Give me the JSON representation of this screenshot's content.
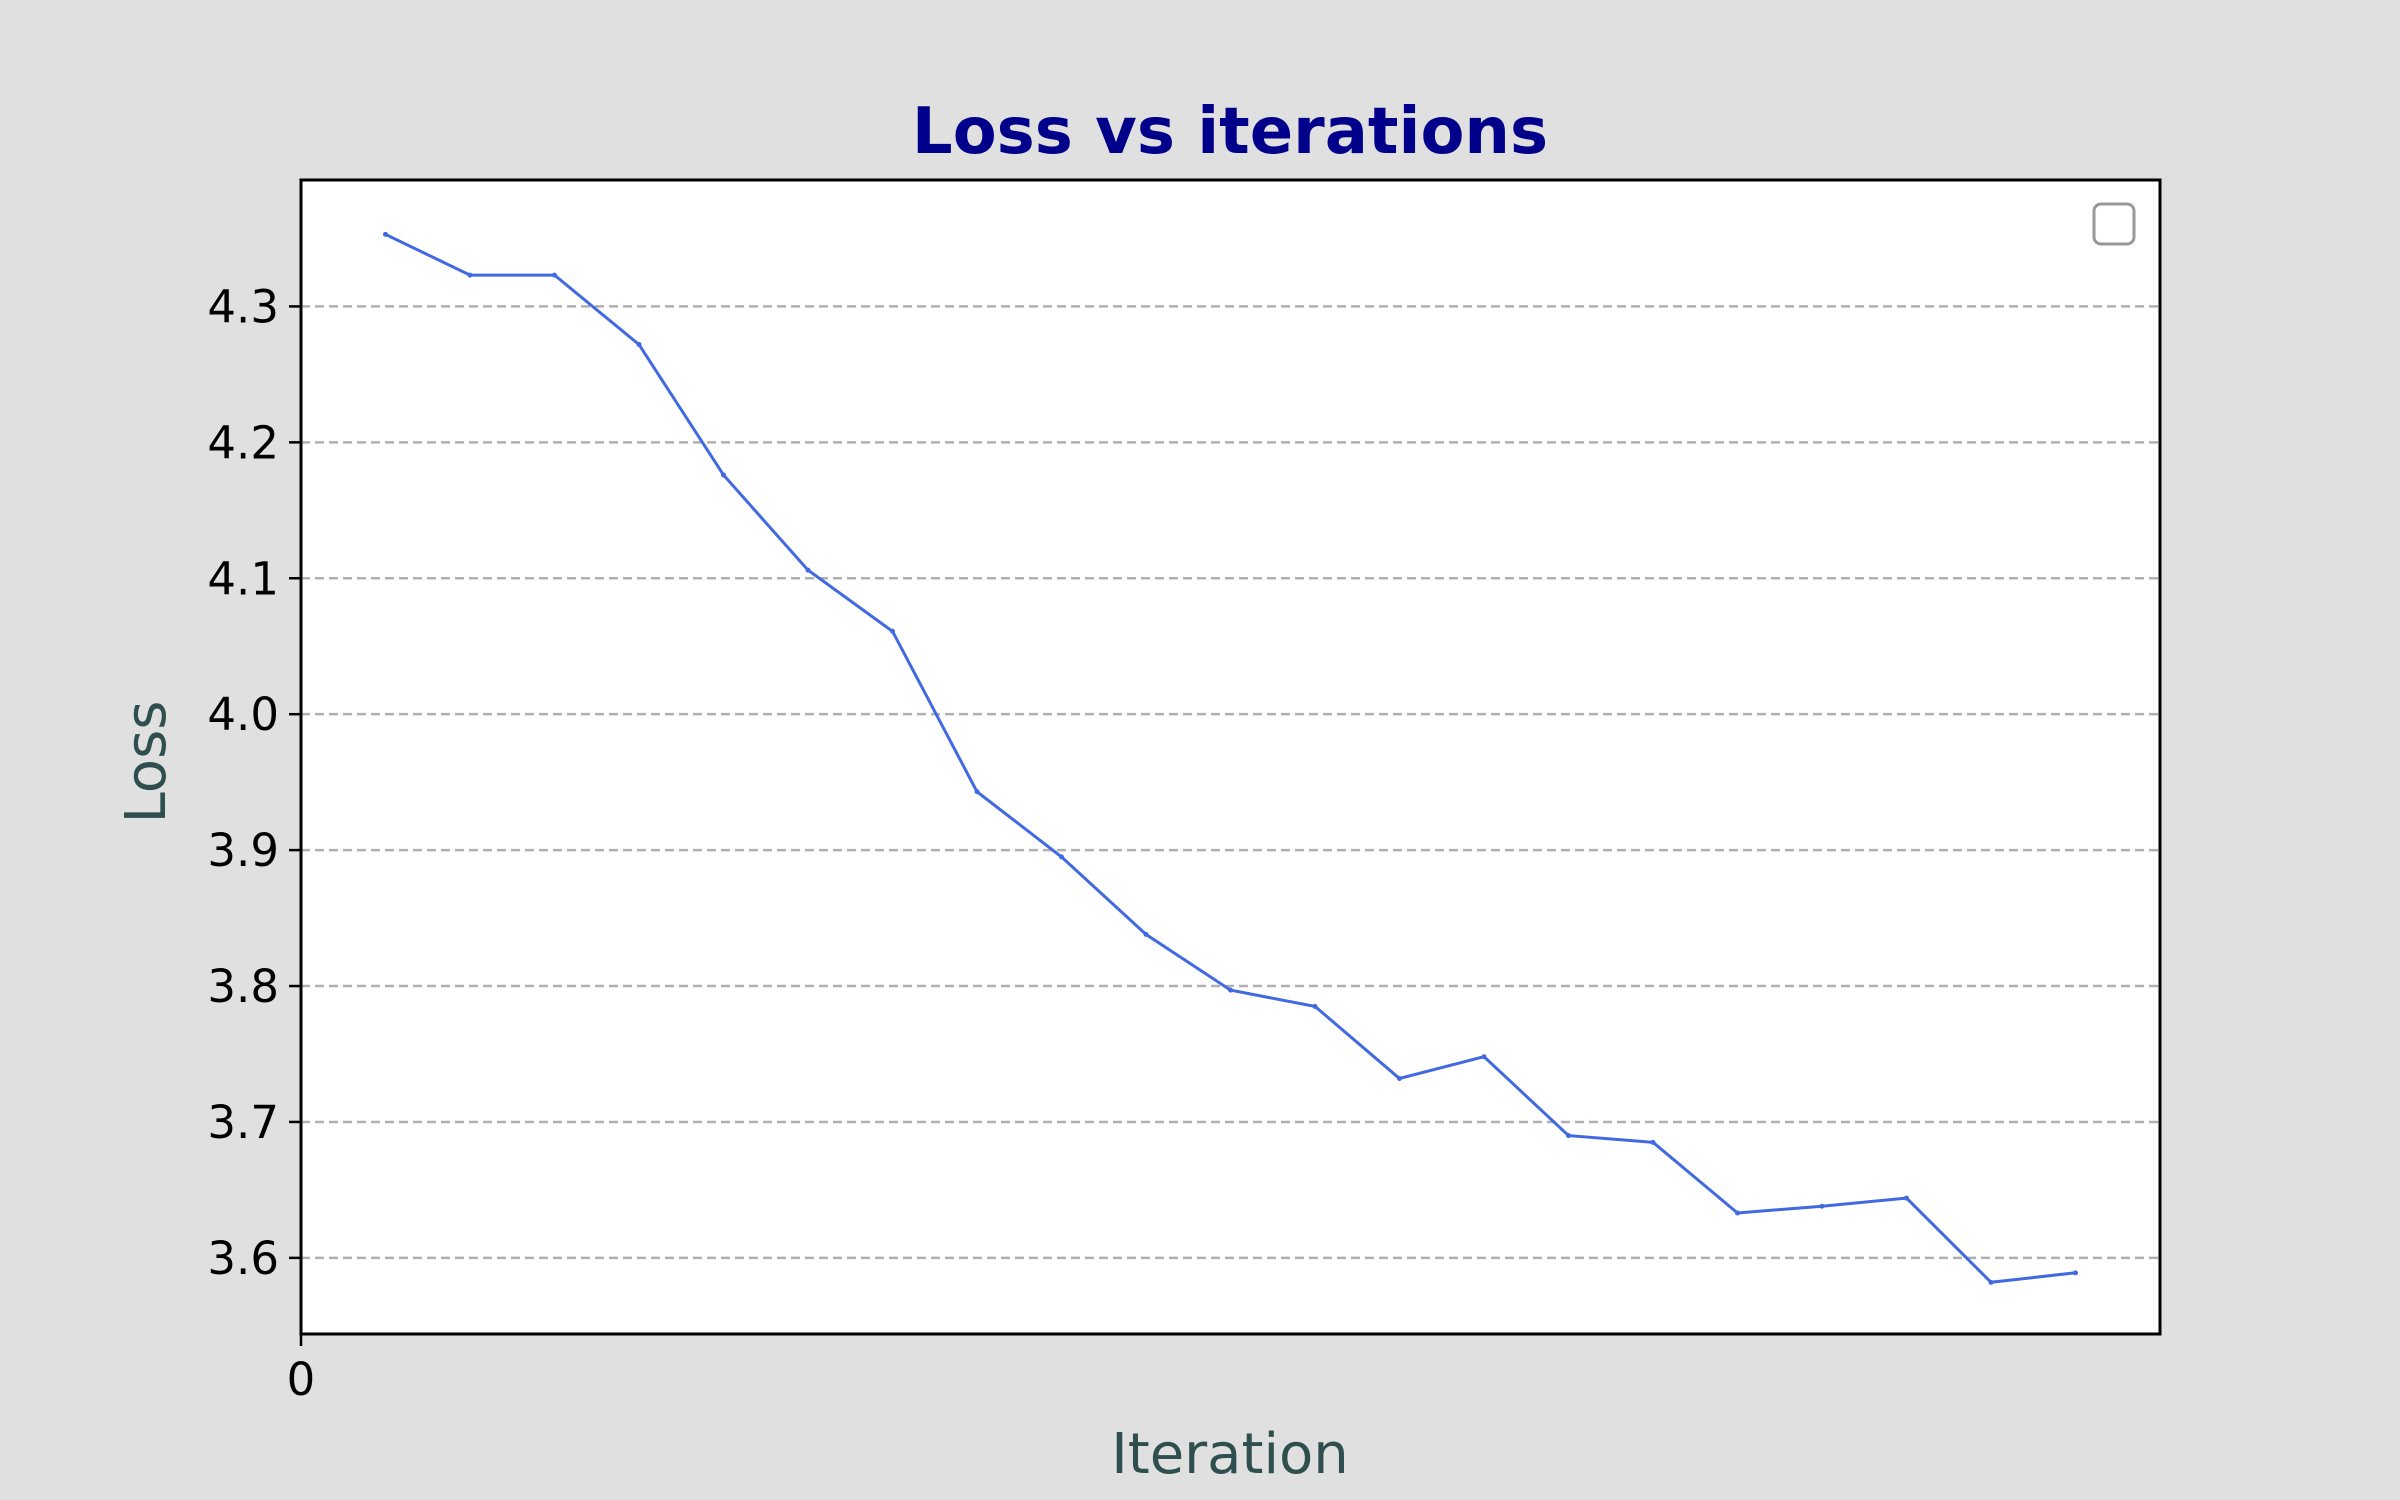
{
  "chart_data": {
    "type": "line",
    "title": "Loss vs iterations",
    "xlabel": "Iteration",
    "ylabel": "Loss",
    "x_tick_labels": [
      "0"
    ],
    "y_tick_labels": [
      "3.6",
      "3.7",
      "3.8",
      "3.9",
      "4.0",
      "4.1",
      "4.2",
      "4.3"
    ],
    "y_ticks": [
      3.6,
      3.7,
      3.8,
      3.9,
      4.0,
      4.1,
      4.2,
      4.3
    ],
    "ylim": [
      3.544,
      4.393
    ],
    "xlim": [
      0,
      22
    ],
    "grid": "horizontal dashed",
    "legend": "top-right, empty",
    "series": [
      {
        "color": "#4169e1",
        "x": [
          1,
          2,
          3,
          4,
          5,
          6,
          7,
          8,
          9,
          10,
          11,
          12,
          13,
          14,
          15,
          16,
          17,
          18,
          19,
          20,
          21
        ],
        "values": [
          4.353,
          4.323,
          4.323,
          4.272,
          4.176,
          4.106,
          4.061,
          3.943,
          3.895,
          3.838,
          3.797,
          3.785,
          3.732,
          3.748,
          3.69,
          3.685,
          3.633,
          3.638,
          3.644,
          3.582,
          3.589
        ]
      }
    ]
  }
}
